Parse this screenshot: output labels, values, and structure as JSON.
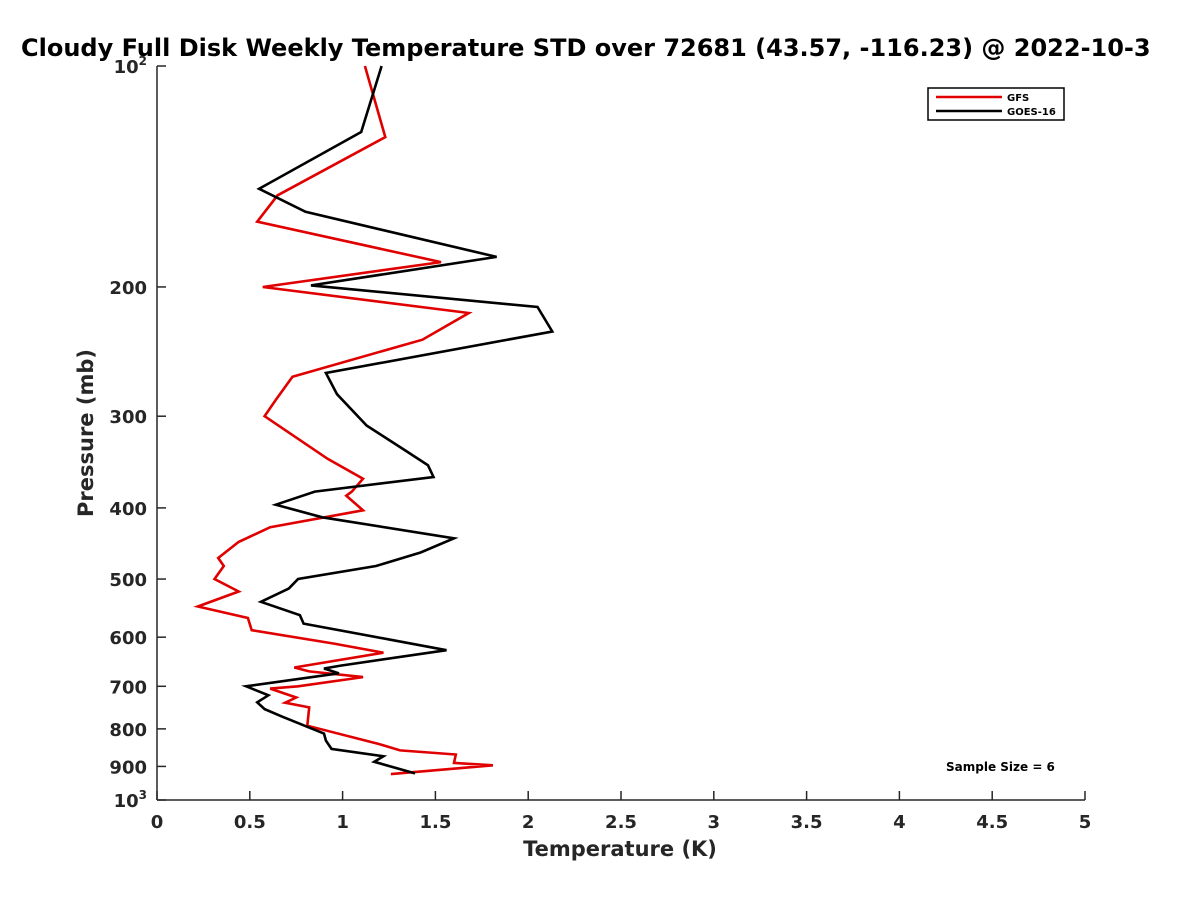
{
  "chart_data": {
    "type": "line",
    "title": "Cloudy Full Disk Weekly Temperature STD over 72681 (43.57, -116.23) @ 2022-10-3",
    "xlabel": "Temperature (K)",
    "ylabel": "Pressure (mb)",
    "xlim": [
      0,
      5
    ],
    "ylim": [
      100,
      1000
    ],
    "y_scale": "log",
    "y_reversed": true,
    "grid": false,
    "legend_position": "top-right",
    "x_ticks": [
      "0",
      "0.5",
      "1",
      "1.5",
      "2",
      "2.5",
      "3",
      "3.5",
      "4",
      "4.5",
      "5"
    ],
    "y_ticks": [
      {
        "value": 100,
        "base": "10",
        "exp": "2"
      },
      {
        "value": 200,
        "label": "200"
      },
      {
        "value": 300,
        "label": "300"
      },
      {
        "value": 400,
        "label": "400"
      },
      {
        "value": 500,
        "label": "500"
      },
      {
        "value": 600,
        "label": "600"
      },
      {
        "value": 700,
        "label": "700"
      },
      {
        "value": 800,
        "label": "800"
      },
      {
        "value": 900,
        "label": "900"
      },
      {
        "value": 1000,
        "base": "10",
        "exp": "3"
      }
    ],
    "annotation": "Sample Size = 6",
    "series": [
      {
        "name": "GFS",
        "color": "#e00000",
        "points": [
          [
            1.12,
            100
          ],
          [
            1.23,
            125
          ],
          [
            0.65,
            150
          ],
          [
            0.54,
            163
          ],
          [
            1.53,
            185
          ],
          [
            0.57,
            200
          ],
          [
            1.68,
            217
          ],
          [
            1.43,
            236
          ],
          [
            0.73,
            265
          ],
          [
            0.64,
            285
          ],
          [
            0.58,
            300
          ],
          [
            0.92,
            343
          ],
          [
            1.11,
            365
          ],
          [
            1.05,
            380
          ],
          [
            1.02,
            385
          ],
          [
            1.11,
            403
          ],
          [
            0.61,
            425
          ],
          [
            0.44,
            445
          ],
          [
            0.33,
            468
          ],
          [
            0.36,
            480
          ],
          [
            0.31,
            500
          ],
          [
            0.44,
            520
          ],
          [
            0.22,
            545
          ],
          [
            0.49,
            565
          ],
          [
            0.51,
            587
          ],
          [
            0.95,
            612
          ],
          [
            1.22,
            630
          ],
          [
            0.74,
            660
          ],
          [
            0.82,
            668
          ],
          [
            1.11,
            680
          ],
          [
            0.76,
            700
          ],
          [
            0.61,
            705
          ],
          [
            0.75,
            725
          ],
          [
            0.69,
            737
          ],
          [
            0.82,
            748
          ],
          [
            0.81,
            792
          ],
          [
            1.19,
            838
          ],
          [
            1.31,
            856
          ],
          [
            1.61,
            867
          ],
          [
            1.6,
            890
          ],
          [
            1.81,
            897
          ],
          [
            1.26,
            922
          ]
        ]
      },
      {
        "name": "GOES-16",
        "color": "#000000",
        "points": [
          [
            1.21,
            100
          ],
          [
            1.1,
            123
          ],
          [
            0.55,
            147
          ],
          [
            0.8,
            158
          ],
          [
            1.83,
            182
          ],
          [
            0.83,
            199
          ],
          [
            2.05,
            213
          ],
          [
            2.13,
            230
          ],
          [
            0.91,
            262
          ],
          [
            0.97,
            280
          ],
          [
            1.13,
            309
          ],
          [
            1.33,
            333
          ],
          [
            1.46,
            350
          ],
          [
            1.49,
            363
          ],
          [
            0.85,
            380
          ],
          [
            0.64,
            396
          ],
          [
            0.89,
            412
          ],
          [
            1.6,
            440
          ],
          [
            1.42,
            460
          ],
          [
            1.18,
            480
          ],
          [
            0.76,
            500
          ],
          [
            0.71,
            515
          ],
          [
            0.56,
            537
          ],
          [
            0.77,
            560
          ],
          [
            0.79,
            575
          ],
          [
            1.26,
            605
          ],
          [
            1.56,
            625
          ],
          [
            0.99,
            656
          ],
          [
            0.9,
            662
          ],
          [
            0.98,
            672
          ],
          [
            0.48,
            700
          ],
          [
            0.6,
            720
          ],
          [
            0.54,
            736
          ],
          [
            0.58,
            752
          ],
          [
            0.67,
            769
          ],
          [
            0.9,
            812
          ],
          [
            0.91,
            830
          ],
          [
            0.94,
            852
          ],
          [
            1.22,
            872
          ],
          [
            1.17,
            887
          ],
          [
            1.39,
            920
          ]
        ]
      }
    ]
  }
}
